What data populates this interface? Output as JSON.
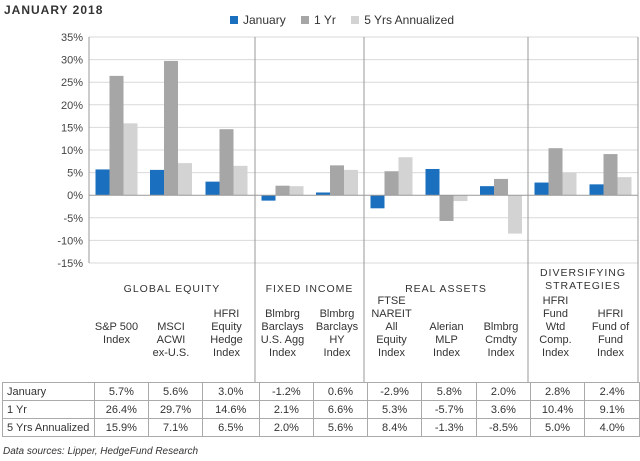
{
  "page": {
    "title": "JANUARY 2018",
    "source": "Data sources: Lipper, HedgeFund Research"
  },
  "colors": {
    "january": "#1a70bf",
    "one_yr": "#a6a6a6",
    "five_yr": "#d3d3d3",
    "grid": "#d9d9d9",
    "axis": "#999999"
  },
  "chart_data": {
    "type": "bar",
    "title": "",
    "xlabel": "",
    "ylabel": "",
    "ylim": [
      -15,
      35
    ],
    "y_ticks": [
      "35%",
      "30%",
      "25%",
      "20%",
      "15%",
      "10%",
      "5%",
      "0%",
      "-5%",
      "-10%",
      "-15%"
    ],
    "grid": true,
    "legend_position": "top",
    "groups": [
      {
        "label": "GLOBAL EQUITY",
        "start": 0,
        "count": 3
      },
      {
        "label": "FIXED INCOME",
        "start": 3,
        "count": 2
      },
      {
        "label": "REAL ASSETS",
        "start": 5,
        "count": 3
      },
      {
        "label": "DIVERSIFYING STRATEGIES",
        "start": 8,
        "count": 2
      }
    ],
    "categories": [
      "S&P 500 Index",
      "MSCI ACWI ex-U.S.",
      "HFRI Equity Hedge Index",
      "Blmbrg Barclays U.S. Agg Index",
      "Blmbrg Barclays HY Index",
      "FTSE NAREIT All Equity Index",
      "Alerian MLP Index",
      "Blmbrg Cmdty Index",
      "HFRI Fund Wtd Comp. Index",
      "HFRI Fund of Fund Index"
    ],
    "series": [
      {
        "name": "January",
        "values": [
          5.7,
          5.6,
          3.0,
          -1.2,
          0.6,
          -2.9,
          5.8,
          2.0,
          2.8,
          2.4
        ],
        "labels": [
          "5.7%",
          "5.6%",
          "3.0%",
          "-1.2%",
          "0.6%",
          "-2.9%",
          "5.8%",
          "2.0%",
          "2.8%",
          "2.4%"
        ]
      },
      {
        "name": "1 Yr",
        "values": [
          26.4,
          29.7,
          14.6,
          2.1,
          6.6,
          5.3,
          -5.7,
          3.6,
          10.4,
          9.1
        ],
        "labels": [
          "26.4%",
          "29.7%",
          "14.6%",
          "2.1%",
          "6.6%",
          "5.3%",
          "-5.7%",
          "3.6%",
          "10.4%",
          "9.1%"
        ]
      },
      {
        "name": "5 Yrs Annualized",
        "values": [
          15.9,
          7.1,
          6.5,
          2.0,
          5.6,
          8.4,
          -1.3,
          -8.5,
          5.0,
          4.0
        ],
        "labels": [
          "15.9%",
          "7.1%",
          "6.5%",
          "2.0%",
          "5.6%",
          "8.4%",
          "-1.3%",
          "-8.5%",
          "5.0%",
          "4.0%"
        ]
      }
    ]
  }
}
